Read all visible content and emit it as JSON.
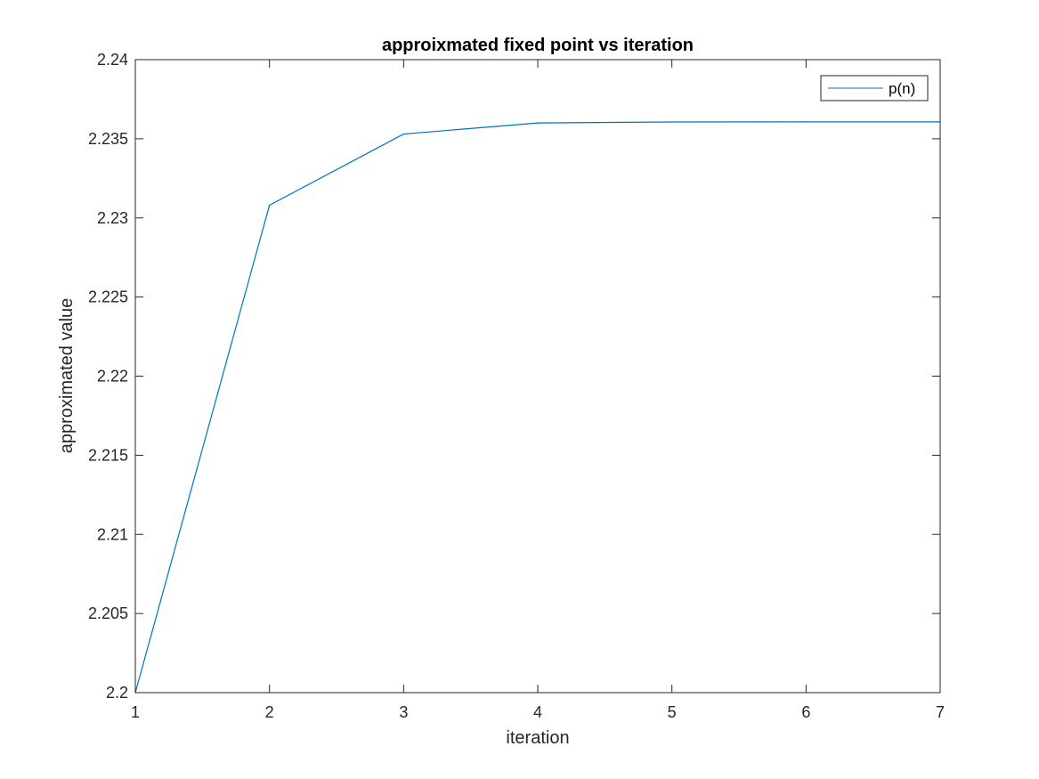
{
  "chart_data": {
    "type": "line",
    "title": "approixmated fixed point vs iteration",
    "xlabel": "iteration",
    "ylabel": "approximated value",
    "xlim": [
      1,
      7
    ],
    "ylim": [
      2.2,
      2.24
    ],
    "xticks": [
      1,
      2,
      3,
      4,
      5,
      6,
      7
    ],
    "xtick_labels": [
      "1",
      "2",
      "3",
      "4",
      "5",
      "6",
      "7"
    ],
    "yticks": [
      2.2,
      2.205,
      2.21,
      2.215,
      2.22,
      2.225,
      2.23,
      2.235,
      2.24
    ],
    "ytick_labels": [
      "2.2",
      "2.205",
      "2.21",
      "2.215",
      "2.22",
      "2.225",
      "2.23",
      "2.235",
      "2.24"
    ],
    "grid": false,
    "legend_position": "top-right",
    "series": [
      {
        "name": "p(n)",
        "color": "#0072BD",
        "x": [
          1,
          2,
          3,
          4,
          5,
          6,
          7
        ],
        "y": [
          2.2,
          2.2308,
          2.2353,
          2.236,
          2.23606,
          2.23607,
          2.23607
        ]
      }
    ]
  }
}
